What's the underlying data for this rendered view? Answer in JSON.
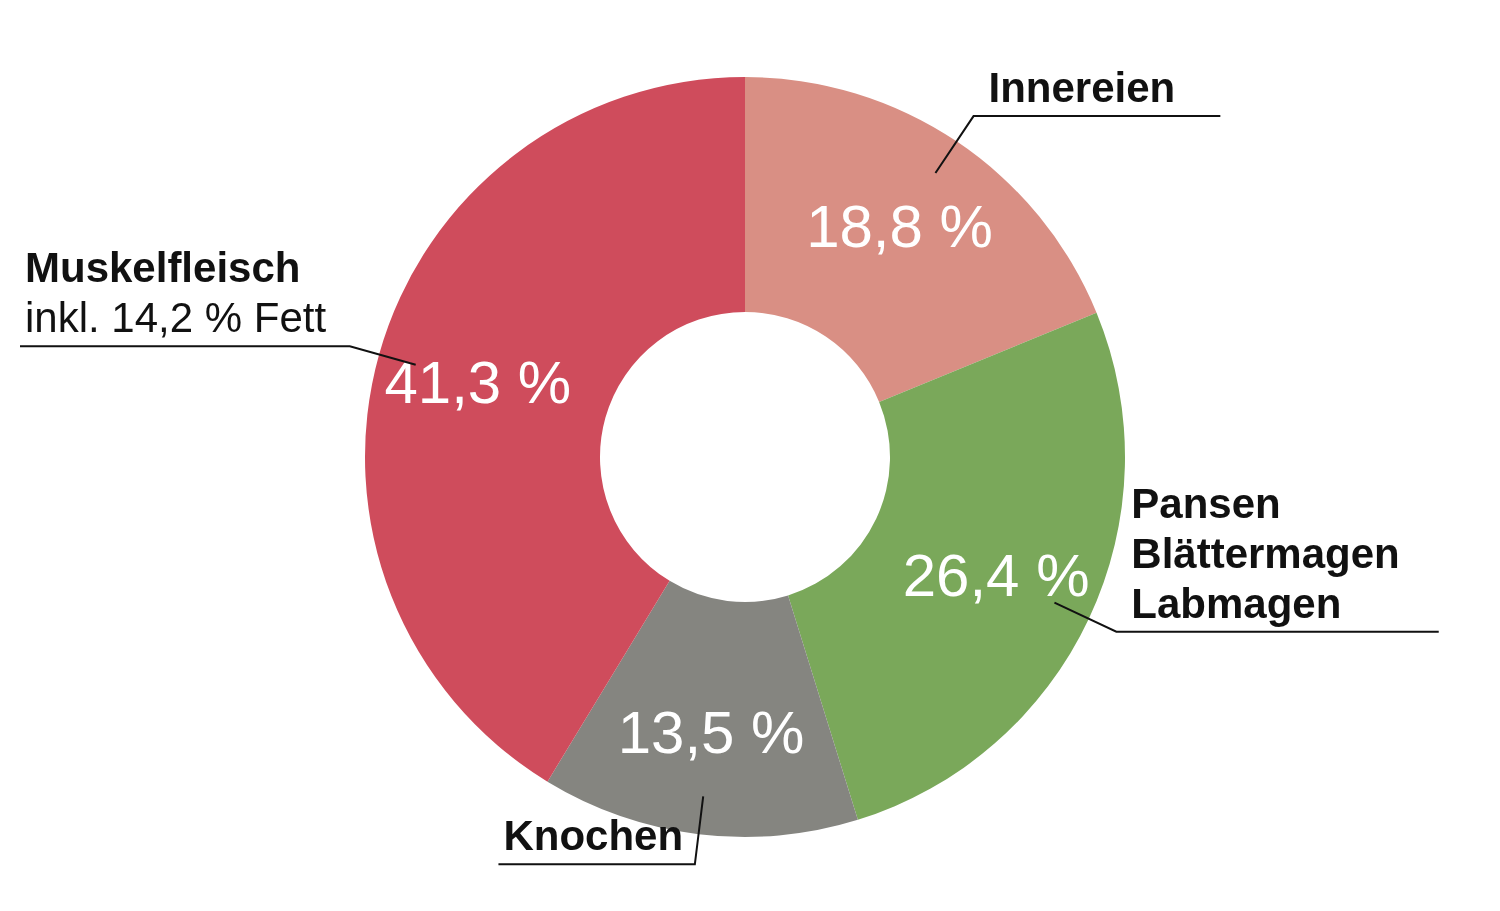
{
  "chart_data": {
    "type": "donut",
    "categories": [
      "Innereien",
      "Pansen\nBlättermagen\nLabmagen",
      "Knochen",
      "Muskelfleisch"
    ],
    "values": [
      18.8,
      26.4,
      13.5,
      41.3
    ],
    "colors": [
      "#d98f84",
      "#7aa85a",
      "#858580",
      "#cf4c5c"
    ],
    "value_labels": [
      "18,8 %",
      "26,4 %",
      "13,5 %",
      "41,3 %"
    ],
    "annotations": [
      {
        "text": "inkl. 14,2 % Fett",
        "x": "Muskelfleisch"
      }
    ],
    "legend": false
  }
}
